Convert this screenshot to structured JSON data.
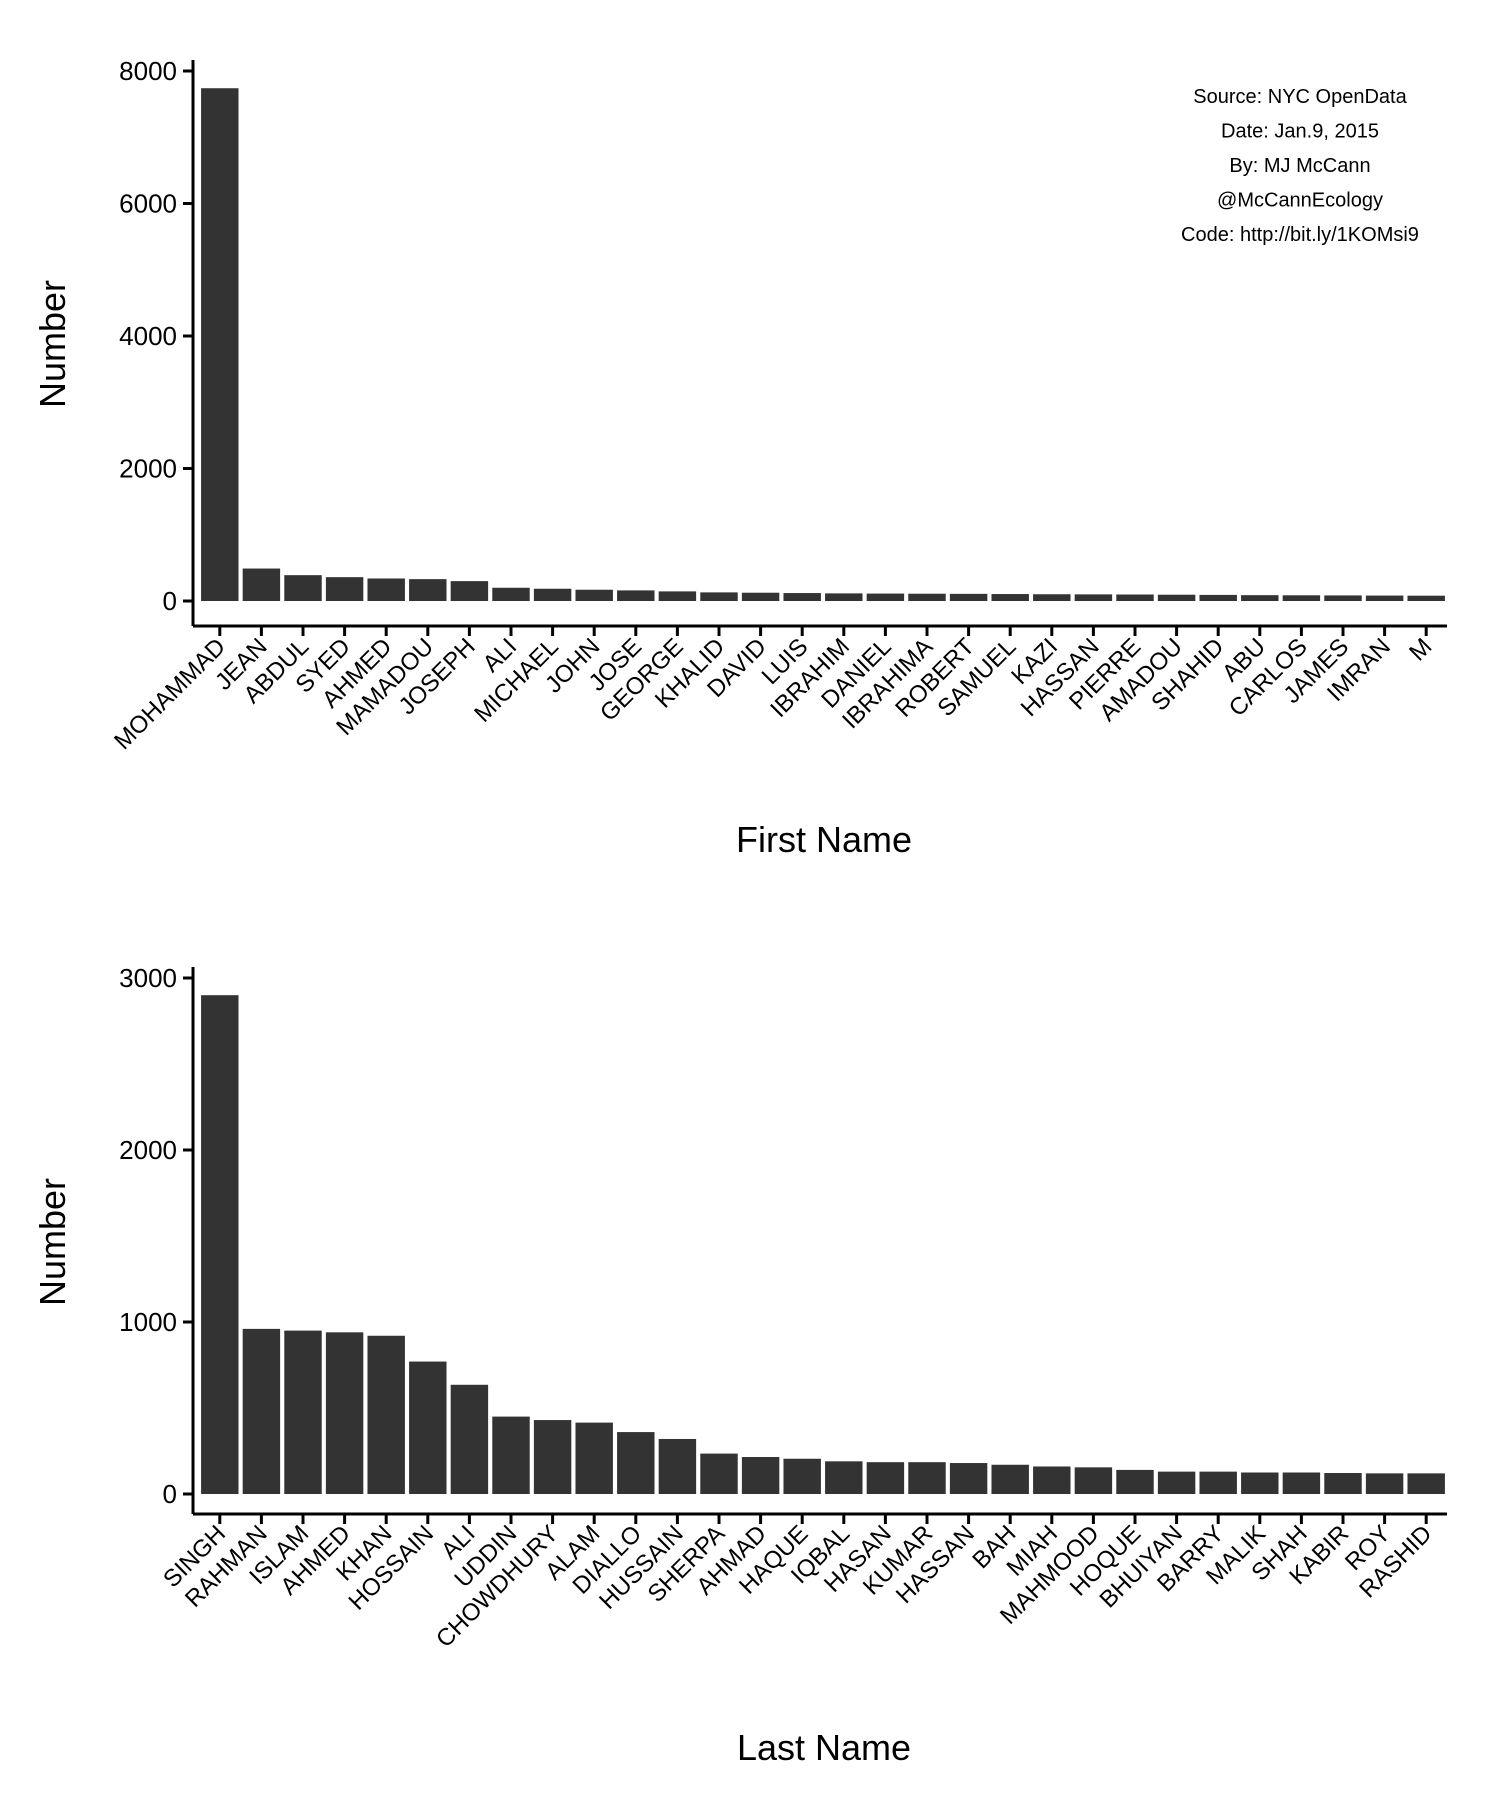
{
  "colors": {
    "bar": "#333333",
    "axis": "#000000",
    "background": "#ffffff"
  },
  "annotation": {
    "lines": [
      "Source: NYC OpenData",
      "Date: Jan.9, 2015",
      "By: MJ McCann",
      "@McCannEcology",
      "Code: http://bit.ly/1KOMsi9"
    ]
  },
  "chart_data": [
    {
      "type": "bar",
      "xlabel": "First Name",
      "ylabel": "Number",
      "ylim": [
        0,
        8000
      ],
      "yticks": [
        0,
        2000,
        4000,
        6000,
        8000
      ],
      "grid": false,
      "categories": [
        "MOHAMMAD",
        "JEAN",
        "ABDUL",
        "SYED",
        "AHMED",
        "MAMADOU",
        "JOSEPH",
        "ALI",
        "MICHAEL",
        "JOHN",
        "JOSE",
        "GEORGE",
        "KHALID",
        "DAVID",
        "LUIS",
        "IBRAHIM",
        "DANIEL",
        "IBRAHIMA",
        "ROBERT",
        "SAMUEL",
        "KAZI",
        "HASSAN",
        "PIERRE",
        "AMADOU",
        "SHAHID",
        "ABU",
        "CARLOS",
        "JAMES",
        "IMRAN",
        "M"
      ],
      "values": [
        7740,
        490,
        390,
        360,
        340,
        330,
        300,
        200,
        185,
        170,
        160,
        145,
        130,
        125,
        120,
        115,
        112,
        110,
        108,
        105,
        102,
        100,
        98,
        95,
        92,
        88,
        86,
        84,
        82,
        80
      ]
    },
    {
      "type": "bar",
      "xlabel": "Last Name",
      "ylabel": "Number",
      "ylim": [
        0,
        3000
      ],
      "yticks": [
        0,
        1000,
        2000,
        3000
      ],
      "grid": false,
      "categories": [
        "SINGH",
        "RAHMAN",
        "ISLAM",
        "AHMED",
        "KHAN",
        "HOSSAIN",
        "ALI",
        "UDDIN",
        "CHOWDHURY",
        "ALAM",
        "DIALLO",
        "HUSSAIN",
        "SHERPA",
        "AHMAD",
        "HAQUE",
        "IQBAL",
        "HASAN",
        "KUMAR",
        "HASSAN",
        "BAH",
        "MIAH",
        "MAHMOOD",
        "HOQUE",
        "BHUIYAN",
        "BARRY",
        "MALIK",
        "SHAH",
        "KABIR",
        "ROY",
        "RASHID"
      ],
      "values": [
        2900,
        960,
        950,
        940,
        920,
        770,
        635,
        450,
        430,
        415,
        360,
        320,
        235,
        215,
        205,
        190,
        185,
        185,
        180,
        170,
        160,
        155,
        140,
        130,
        130,
        125,
        125,
        122,
        120,
        120
      ]
    }
  ]
}
